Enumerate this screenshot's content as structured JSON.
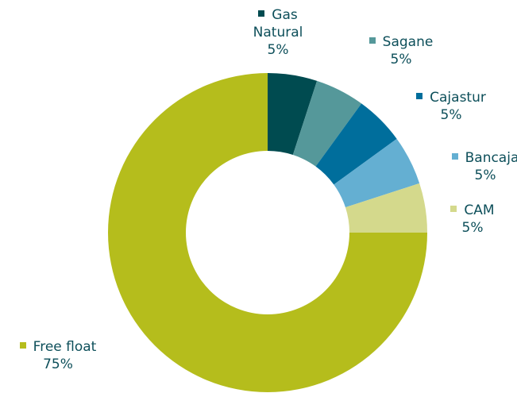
{
  "chart_data": {
    "type": "donut",
    "categories": [
      "Gas Natural",
      "Sagane",
      "Cajastur",
      "Bancaja",
      "CAM",
      "Free float"
    ],
    "values": [
      5,
      5,
      5,
      5,
      5,
      75
    ],
    "value_labels": [
      "5%",
      "5%",
      "5%",
      "5%",
      "5%",
      "75%"
    ],
    "colors": [
      "#004b50",
      "#55989a",
      "#006e9c",
      "#64afd2",
      "#d4d98c",
      "#b5bd1c"
    ]
  }
}
